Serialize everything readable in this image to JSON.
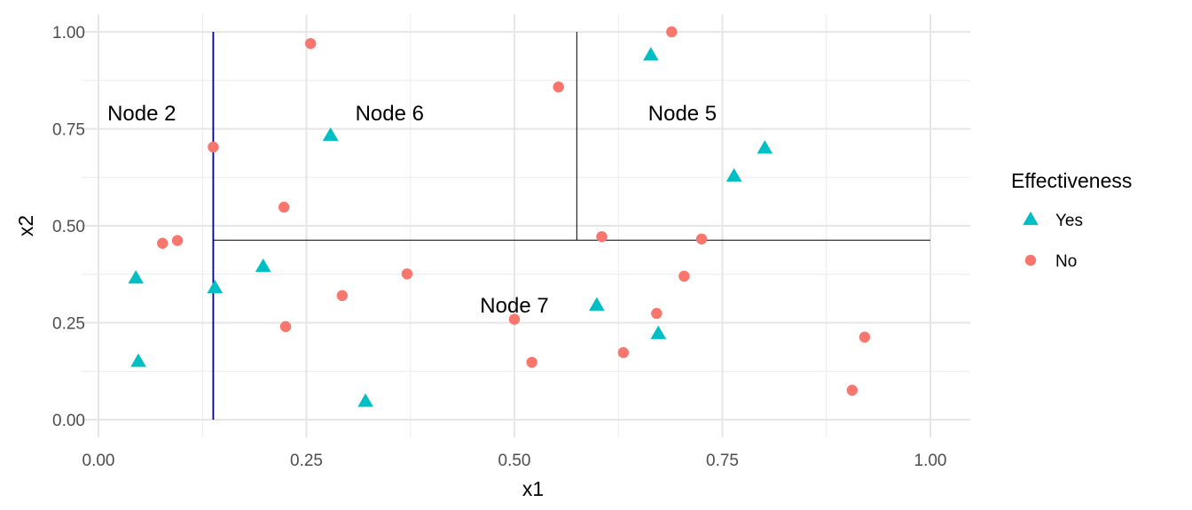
{
  "chart_data": {
    "type": "scatter",
    "title": "",
    "xlabel": "x1",
    "ylabel": "x2",
    "xlim": [
      0,
      1
    ],
    "ylim": [
      0,
      1
    ],
    "x_ticks": [
      0,
      0.25,
      0.5,
      0.75,
      1.0
    ],
    "y_ticks": [
      0,
      0.25,
      0.5,
      0.75,
      1.0
    ],
    "x_tick_labels": [
      "0.00",
      "0.25",
      "0.50",
      "0.75",
      "1.00"
    ],
    "y_tick_labels": [
      "0.00",
      "0.25",
      "0.50",
      "0.75",
      "1.00"
    ],
    "grid": true,
    "legend": {
      "title": "Effectiveness",
      "position": "right",
      "entries": [
        {
          "name": "Yes",
          "shape": "triangle",
          "color": "#00BFC4"
        },
        {
          "name": "No",
          "shape": "circle",
          "color": "#F8766D"
        }
      ]
    },
    "series": [
      {
        "name": "Yes",
        "shape": "triangle",
        "color": "#00BFC4",
        "points": [
          [
            0.045,
            0.365
          ],
          [
            0.048,
            0.15
          ],
          [
            0.14,
            0.34
          ],
          [
            0.198,
            0.395
          ],
          [
            0.279,
            0.733
          ],
          [
            0.321,
            0.047
          ],
          [
            0.599,
            0.295
          ],
          [
            0.664,
            0.94
          ],
          [
            0.673,
            0.222
          ],
          [
            0.764,
            0.628
          ],
          [
            0.801,
            0.7
          ]
        ]
      },
      {
        "name": "No",
        "shape": "circle",
        "color": "#F8766D",
        "points": [
          [
            0.077,
            0.455
          ],
          [
            0.095,
            0.462
          ],
          [
            0.138,
            0.703
          ],
          [
            0.223,
            0.548
          ],
          [
            0.225,
            0.24
          ],
          [
            0.255,
            0.97
          ],
          [
            0.293,
            0.32
          ],
          [
            0.371,
            0.376
          ],
          [
            0.5,
            0.259
          ],
          [
            0.521,
            0.148
          ],
          [
            0.553,
            0.858
          ],
          [
            0.605,
            0.472
          ],
          [
            0.631,
            0.173
          ],
          [
            0.671,
            0.274
          ],
          [
            0.689,
            1.0
          ],
          [
            0.704,
            0.37
          ],
          [
            0.725,
            0.466
          ],
          [
            0.906,
            0.076
          ],
          [
            0.921,
            0.213
          ]
        ]
      }
    ],
    "splits": [
      {
        "orientation": "vertical",
        "x": 0.138,
        "y_from": 0,
        "y_to": 1.0,
        "color": "#00008B"
      },
      {
        "orientation": "horizontal",
        "y": 0.463,
        "x_from": 0.138,
        "x_to": 1.0,
        "color": "#000000"
      },
      {
        "orientation": "vertical",
        "x": 0.575,
        "y_from": 0.463,
        "y_to": 1.0,
        "color": "#000000"
      }
    ],
    "annotations": [
      {
        "text": "Node 2",
        "x": 0.052,
        "y": 0.79
      },
      {
        "text": "Node 6",
        "x": 0.35,
        "y": 0.79
      },
      {
        "text": "Node 5",
        "x": 0.702,
        "y": 0.79
      },
      {
        "text": "Node 7",
        "x": 0.5,
        "y": 0.295
      }
    ]
  }
}
